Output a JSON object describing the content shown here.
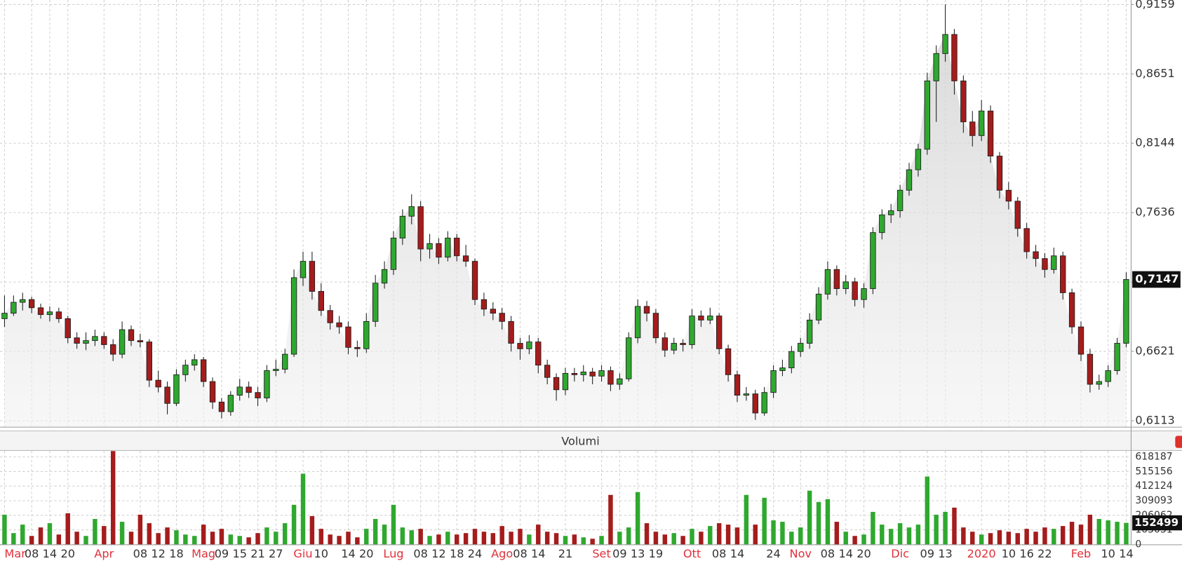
{
  "chart_data": {
    "type": "candlestick",
    "categories": [
      "Mar",
      null,
      null,
      "08",
      null,
      "14",
      null,
      "20",
      null,
      null,
      null,
      "Apr",
      null,
      null,
      null,
      "08",
      null,
      "12",
      null,
      "18",
      null,
      null,
      "Mag",
      null,
      "09",
      null,
      "15",
      null,
      "21",
      null,
      "27",
      null,
      null,
      "Giu",
      null,
      "10",
      null,
      null,
      "14",
      null,
      "20",
      null,
      null,
      "Lug",
      null,
      null,
      "08",
      null,
      "12",
      null,
      "18",
      null,
      "24",
      null,
      null,
      "Ago",
      null,
      "08",
      null,
      "14",
      null,
      null,
      "21",
      null,
      null,
      null,
      "Set",
      null,
      "09",
      null,
      "13",
      null,
      "19",
      null,
      null,
      null,
      "Ott",
      null,
      null,
      "08",
      null,
      "14",
      null,
      null,
      null,
      "24",
      null,
      null,
      "Nov",
      null,
      null,
      "08",
      null,
      "14",
      null,
      "20",
      null,
      null,
      null,
      "Dic",
      null,
      null,
      "09",
      null,
      "13",
      null,
      null,
      null,
      "2020",
      null,
      null,
      "10",
      null,
      "16",
      null,
      "22",
      null,
      null,
      null,
      "Feb",
      null,
      null,
      "10",
      null,
      "14"
    ],
    "candles": [
      [
        0.686,
        0.703,
        0.68,
        0.69
      ],
      [
        0.69,
        0.703,
        0.688,
        0.698
      ],
      [
        0.698,
        0.705,
        0.692,
        0.7
      ],
      [
        0.7,
        0.702,
        0.69,
        0.694
      ],
      [
        0.694,
        0.697,
        0.686,
        0.689
      ],
      [
        0.689,
        0.695,
        0.684,
        0.691
      ],
      [
        0.691,
        0.694,
        0.683,
        0.686
      ],
      [
        0.686,
        0.688,
        0.668,
        0.672
      ],
      [
        0.672,
        0.676,
        0.664,
        0.668
      ],
      [
        0.668,
        0.676,
        0.663,
        0.67
      ],
      [
        0.67,
        0.678,
        0.666,
        0.673
      ],
      [
        0.673,
        0.676,
        0.664,
        0.667
      ],
      [
        0.667,
        0.671,
        0.655,
        0.66
      ],
      [
        0.66,
        0.684,
        0.657,
        0.678
      ],
      [
        0.678,
        0.681,
        0.666,
        0.67
      ],
      [
        0.67,
        0.675,
        0.665,
        0.669
      ],
      [
        0.669,
        0.671,
        0.636,
        0.641
      ],
      [
        0.641,
        0.648,
        0.632,
        0.636
      ],
      [
        0.636,
        0.64,
        0.616,
        0.624
      ],
      [
        0.624,
        0.649,
        0.622,
        0.645
      ],
      [
        0.645,
        0.656,
        0.64,
        0.652
      ],
      [
        0.652,
        0.66,
        0.648,
        0.656
      ],
      [
        0.656,
        0.658,
        0.636,
        0.64
      ],
      [
        0.64,
        0.643,
        0.62,
        0.625
      ],
      [
        0.625,
        0.628,
        0.613,
        0.618
      ],
      [
        0.618,
        0.633,
        0.615,
        0.63
      ],
      [
        0.63,
        0.642,
        0.626,
        0.636
      ],
      [
        0.636,
        0.64,
        0.628,
        0.632
      ],
      [
        0.632,
        0.636,
        0.622,
        0.628
      ],
      [
        0.628,
        0.652,
        0.625,
        0.648
      ],
      [
        0.648,
        0.656,
        0.644,
        0.649
      ],
      [
        0.649,
        0.664,
        0.646,
        0.66
      ],
      [
        0.66,
        0.722,
        0.658,
        0.716
      ],
      [
        0.716,
        0.735,
        0.71,
        0.728
      ],
      [
        0.728,
        0.735,
        0.7,
        0.706
      ],
      [
        0.706,
        0.712,
        0.688,
        0.692
      ],
      [
        0.692,
        0.696,
        0.678,
        0.683
      ],
      [
        0.683,
        0.688,
        0.675,
        0.68
      ],
      [
        0.68,
        0.684,
        0.66,
        0.665
      ],
      [
        0.665,
        0.67,
        0.658,
        0.664
      ],
      [
        0.664,
        0.69,
        0.661,
        0.684
      ],
      [
        0.684,
        0.718,
        0.68,
        0.712
      ],
      [
        0.712,
        0.728,
        0.708,
        0.722
      ],
      [
        0.722,
        0.75,
        0.718,
        0.745
      ],
      [
        0.745,
        0.766,
        0.74,
        0.761
      ],
      [
        0.761,
        0.777,
        0.755,
        0.768
      ],
      [
        0.768,
        0.772,
        0.728,
        0.737
      ],
      [
        0.737,
        0.748,
        0.73,
        0.741
      ],
      [
        0.741,
        0.745,
        0.726,
        0.731
      ],
      [
        0.731,
        0.75,
        0.728,
        0.745
      ],
      [
        0.745,
        0.748,
        0.728,
        0.732
      ],
      [
        0.732,
        0.74,
        0.724,
        0.728
      ],
      [
        0.728,
        0.73,
        0.696,
        0.7
      ],
      [
        0.7,
        0.705,
        0.688,
        0.693
      ],
      [
        0.693,
        0.698,
        0.685,
        0.69
      ],
      [
        0.69,
        0.694,
        0.678,
        0.684
      ],
      [
        0.684,
        0.688,
        0.662,
        0.668
      ],
      [
        0.668,
        0.672,
        0.656,
        0.664
      ],
      [
        0.664,
        0.674,
        0.66,
        0.669
      ],
      [
        0.669,
        0.672,
        0.646,
        0.652
      ],
      [
        0.652,
        0.656,
        0.638,
        0.643
      ],
      [
        0.643,
        0.646,
        0.626,
        0.634
      ],
      [
        0.634,
        0.65,
        0.63,
        0.646
      ],
      [
        0.646,
        0.65,
        0.64,
        0.645
      ],
      [
        0.645,
        0.652,
        0.64,
        0.647
      ],
      [
        0.647,
        0.65,
        0.638,
        0.644
      ],
      [
        0.644,
        0.652,
        0.64,
        0.648
      ],
      [
        0.648,
        0.651,
        0.633,
        0.638
      ],
      [
        0.638,
        0.646,
        0.634,
        0.642
      ],
      [
        0.642,
        0.676,
        0.64,
        0.672
      ],
      [
        0.672,
        0.7,
        0.668,
        0.695
      ],
      [
        0.695,
        0.699,
        0.684,
        0.69
      ],
      [
        0.69,
        0.693,
        0.668,
        0.672
      ],
      [
        0.672,
        0.676,
        0.658,
        0.663
      ],
      [
        0.663,
        0.672,
        0.66,
        0.668
      ],
      [
        0.668,
        0.671,
        0.662,
        0.667
      ],
      [
        0.667,
        0.693,
        0.664,
        0.688
      ],
      [
        0.688,
        0.692,
        0.68,
        0.685
      ],
      [
        0.685,
        0.694,
        0.682,
        0.688
      ],
      [
        0.688,
        0.69,
        0.66,
        0.664
      ],
      [
        0.664,
        0.667,
        0.64,
        0.645
      ],
      [
        0.645,
        0.648,
        0.625,
        0.63
      ],
      [
        0.63,
        0.636,
        0.626,
        0.631
      ],
      [
        0.631,
        0.634,
        0.612,
        0.617
      ],
      [
        0.617,
        0.636,
        0.615,
        0.632
      ],
      [
        0.632,
        0.652,
        0.628,
        0.648
      ],
      [
        0.648,
        0.656,
        0.644,
        0.65
      ],
      [
        0.65,
        0.666,
        0.646,
        0.662
      ],
      [
        0.662,
        0.672,
        0.658,
        0.668
      ],
      [
        0.668,
        0.69,
        0.664,
        0.685
      ],
      [
        0.685,
        0.709,
        0.682,
        0.704
      ],
      [
        0.704,
        0.728,
        0.7,
        0.722
      ],
      [
        0.722,
        0.725,
        0.703,
        0.708
      ],
      [
        0.708,
        0.718,
        0.704,
        0.713
      ],
      [
        0.713,
        0.716,
        0.695,
        0.7
      ],
      [
        0.7,
        0.712,
        0.694,
        0.708
      ],
      [
        0.708,
        0.753,
        0.704,
        0.749
      ],
      [
        0.749,
        0.766,
        0.744,
        0.762
      ],
      [
        0.762,
        0.77,
        0.756,
        0.765
      ],
      [
        0.765,
        0.784,
        0.76,
        0.78
      ],
      [
        0.78,
        0.8,
        0.776,
        0.795
      ],
      [
        0.795,
        0.814,
        0.79,
        0.81
      ],
      [
        0.81,
        0.866,
        0.806,
        0.86
      ],
      [
        0.86,
        0.886,
        0.83,
        0.88
      ],
      [
        0.88,
        0.916,
        0.874,
        0.894
      ],
      [
        0.894,
        0.898,
        0.85,
        0.86
      ],
      [
        0.86,
        0.864,
        0.822,
        0.83
      ],
      [
        0.83,
        0.838,
        0.812,
        0.82
      ],
      [
        0.82,
        0.846,
        0.816,
        0.838
      ],
      [
        0.838,
        0.842,
        0.8,
        0.805
      ],
      [
        0.805,
        0.808,
        0.774,
        0.78
      ],
      [
        0.78,
        0.786,
        0.766,
        0.772
      ],
      [
        0.772,
        0.775,
        0.746,
        0.752
      ],
      [
        0.752,
        0.756,
        0.73,
        0.735
      ],
      [
        0.735,
        0.74,
        0.724,
        0.73
      ],
      [
        0.73,
        0.734,
        0.716,
        0.722
      ],
      [
        0.722,
        0.738,
        0.719,
        0.732
      ],
      [
        0.732,
        0.735,
        0.7,
        0.705
      ],
      [
        0.705,
        0.708,
        0.675,
        0.68
      ],
      [
        0.68,
        0.684,
        0.655,
        0.66
      ],
      [
        0.66,
        0.664,
        0.632,
        0.638
      ],
      [
        0.638,
        0.645,
        0.634,
        0.64
      ],
      [
        0.64,
        0.652,
        0.636,
        0.648
      ],
      [
        0.648,
        0.672,
        0.645,
        0.668
      ],
      [
        0.668,
        0.72,
        0.665,
        0.7147
      ]
    ],
    "ylim": [
      0.6069,
      0.9192
    ],
    "yticks": [
      {
        "value": 0.6113,
        "label": "0,6113"
      },
      {
        "value": 0.6621,
        "label": "0,6621"
      },
      {
        "value": 0.7128,
        "label": "0,7128"
      },
      {
        "value": 0.7636,
        "label": "0,7636"
      },
      {
        "value": 0.8144,
        "label": "0,8144"
      },
      {
        "value": 0.8651,
        "label": "0,8651"
      },
      {
        "value": 0.9159,
        "label": "0,9159"
      }
    ],
    "last_close_label": "0,7147",
    "up_color": "#2fa82f",
    "down_color": "#a51c1c",
    "period_label_color": "#e0303a",
    "grid": true,
    "volume": {
      "title": "Volumi",
      "values": [
        210000,
        80000,
        140000,
        60000,
        120000,
        150000,
        70000,
        220000,
        90000,
        60000,
        180000,
        130000,
        660000,
        160000,
        90000,
        210000,
        150000,
        80000,
        120000,
        100000,
        70000,
        60000,
        140000,
        90000,
        110000,
        70000,
        60000,
        50000,
        80000,
        120000,
        90000,
        150000,
        280000,
        500000,
        200000,
        110000,
        70000,
        60000,
        90000,
        50000,
        110000,
        180000,
        140000,
        280000,
        120000,
        100000,
        110000,
        60000,
        70000,
        90000,
        70000,
        80000,
        110000,
        90000,
        80000,
        130000,
        90000,
        110000,
        70000,
        140000,
        90000,
        80000,
        60000,
        70000,
        50000,
        40000,
        60000,
        350000,
        90000,
        120000,
        370000,
        150000,
        90000,
        70000,
        80000,
        60000,
        110000,
        90000,
        130000,
        150000,
        140000,
        120000,
        350000,
        140000,
        330000,
        170000,
        160000,
        90000,
        120000,
        380000,
        300000,
        320000,
        160000,
        90000,
        60000,
        70000,
        230000,
        140000,
        110000,
        150000,
        120000,
        140000,
        480000,
        210000,
        230000,
        260000,
        120000,
        90000,
        70000,
        80000,
        100000,
        90000,
        80000,
        110000,
        90000,
        120000,
        110000,
        130000,
        160000,
        140000,
        210000,
        180000,
        170000,
        160000,
        152499
      ],
      "ylim": [
        0,
        661000
      ],
      "yticks": [
        0,
        103031,
        206062,
        309093,
        412124,
        515156,
        618187
      ]
    }
  }
}
